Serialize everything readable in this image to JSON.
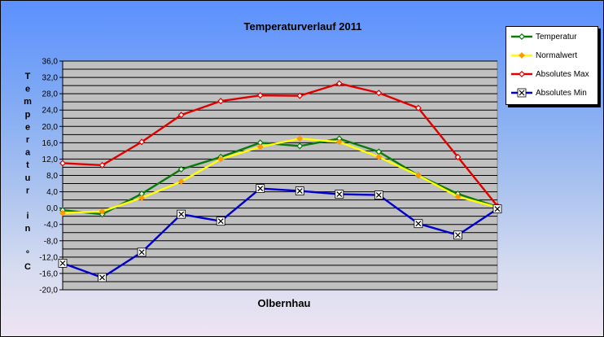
{
  "chart_data": {
    "type": "line",
    "title": "Temperaturverlauf  2011",
    "xlabel": "Olbernhau",
    "ylabel_chars": [
      "T",
      "e",
      "m",
      "p",
      "e",
      "r",
      "a",
      "t",
      "u",
      "r",
      "",
      "i",
      "n",
      "",
      "°",
      "C"
    ],
    "ylim": [
      -20,
      36
    ],
    "yticks": [
      "36,0",
      "32,0",
      "28,0",
      "24,0",
      "20,0",
      "16,0",
      "12,0",
      "8,0",
      "4,0",
      "0,0",
      "-4,0",
      "-8,0",
      "-12,0",
      "-16,0",
      "-20,0"
    ],
    "minor_step": 2,
    "grid": true,
    "legend_position": "top-right",
    "categories": 12,
    "series": [
      {
        "name": "Temperatur",
        "color": "#0a7a0a",
        "marker": "diamond-outline",
        "values": [
          -0.5,
          -1.5,
          3.5,
          9.5,
          12.5,
          16.0,
          15.2,
          17.0,
          13.8,
          8.0,
          3.5,
          0.3
        ]
      },
      {
        "name": "Normalwert",
        "color": "#ffff00",
        "marker": "diamond-orange",
        "values": [
          -1.2,
          -0.8,
          2.5,
          6.5,
          12.0,
          15.0,
          17.0,
          16.2,
          12.5,
          8.0,
          2.8,
          0.2
        ]
      },
      {
        "name": "Absolutes Max",
        "color": "#e00000",
        "marker": "diamond-outline",
        "values": [
          11.0,
          10.5,
          16.2,
          22.8,
          26.2,
          27.6,
          27.5,
          30.5,
          28.2,
          24.5,
          12.5,
          0.5
        ]
      },
      {
        "name": "Absolutes Min",
        "color": "#0000cc",
        "marker": "x-box",
        "values": [
          -13.5,
          -17.0,
          -10.8,
          -1.5,
          -3.2,
          4.8,
          4.2,
          3.4,
          3.2,
          -3.8,
          -6.6,
          -0.2
        ]
      }
    ]
  }
}
